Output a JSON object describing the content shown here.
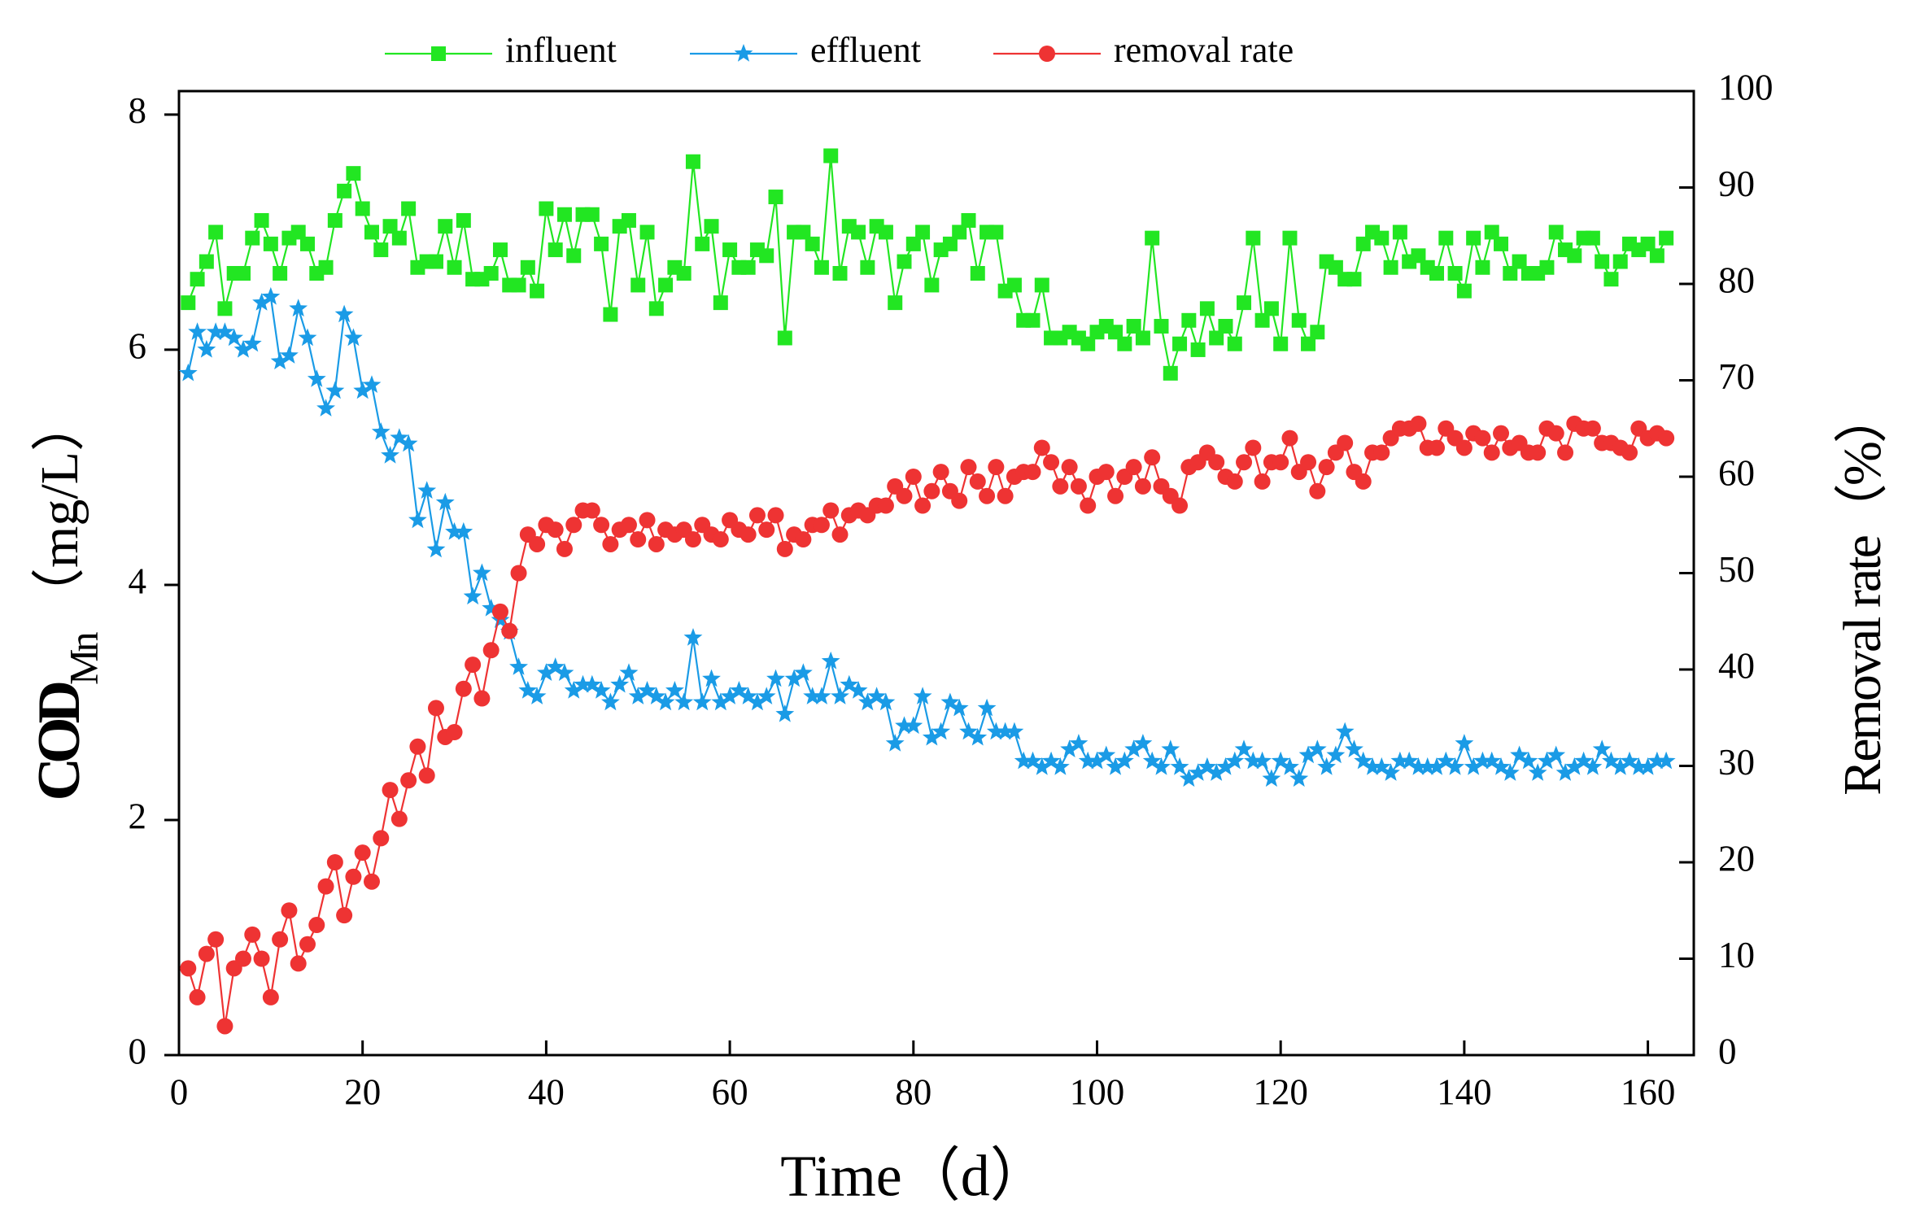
{
  "chart_data": {
    "type": "line",
    "xlabel": "Time（d）",
    "ylabel": "COD",
    "ylabel_sub": "Mn",
    "ylabel_unit": "（mg/L）",
    "y2label": "Removal rate（%）",
    "xlim": [
      0,
      165
    ],
    "xticks": [
      0,
      20,
      40,
      60,
      80,
      100,
      120,
      140,
      160
    ],
    "ylim": [
      0,
      8.2
    ],
    "yticks": [
      0,
      2,
      4,
      6,
      8
    ],
    "y2lim": [
      0,
      100
    ],
    "y2ticks": [
      0,
      10,
      20,
      30,
      40,
      50,
      60,
      70,
      80,
      90,
      100
    ],
    "legend": "top",
    "x": [
      1,
      2,
      3,
      4,
      5,
      6,
      7,
      8,
      9,
      10,
      11,
      12,
      13,
      14,
      15,
      16,
      17,
      18,
      19,
      20,
      21,
      22,
      23,
      24,
      25,
      26,
      27,
      28,
      29,
      30,
      31,
      32,
      33,
      34,
      35,
      36,
      37,
      38,
      39,
      40,
      41,
      42,
      43,
      44,
      45,
      46,
      47,
      48,
      49,
      50,
      51,
      52,
      53,
      54,
      55,
      56,
      57,
      58,
      59,
      60,
      61,
      62,
      63,
      64,
      65,
      66,
      67,
      68,
      69,
      70,
      71,
      72,
      73,
      74,
      75,
      76,
      77,
      78,
      79,
      80,
      81,
      82,
      83,
      84,
      85,
      86,
      87,
      88,
      89,
      90,
      91,
      92,
      93,
      94,
      95,
      96,
      97,
      98,
      99,
      100,
      101,
      102,
      103,
      104,
      105,
      106,
      107,
      108,
      109,
      110,
      111,
      112,
      113,
      114,
      115,
      116,
      117,
      118,
      119,
      120,
      121,
      122,
      123,
      124,
      125,
      126,
      127,
      128,
      129,
      130,
      131,
      132,
      133,
      134,
      135,
      136,
      137,
      138,
      139,
      140,
      141,
      142,
      143,
      144,
      145,
      146,
      147,
      148,
      149,
      150,
      151,
      152,
      153,
      154,
      155,
      156,
      157,
      158,
      159,
      160,
      161,
      162
    ],
    "series": [
      {
        "name": "influent",
        "color": "#22e622",
        "marker": "square",
        "values": [
          6.4,
          6.6,
          6.75,
          7.0,
          6.35,
          6.65,
          6.65,
          6.95,
          7.1,
          6.9,
          6.65,
          6.95,
          7.0,
          6.9,
          6.65,
          6.7,
          7.1,
          7.35,
          7.5,
          7.2,
          7.0,
          6.85,
          7.05,
          6.95,
          7.2,
          6.7,
          6.75,
          6.75,
          7.05,
          6.7,
          7.1,
          6.6,
          6.6,
          6.65,
          6.85,
          6.55,
          6.55,
          6.7,
          6.5,
          7.2,
          6.85,
          7.15,
          6.8,
          7.15,
          7.15,
          6.9,
          6.3,
          7.05,
          7.1,
          6.55,
          7.0,
          6.35,
          6.55,
          6.7,
          6.65,
          7.6,
          6.9,
          7.05,
          6.4,
          6.85,
          6.7,
          6.7,
          6.85,
          6.8,
          7.3,
          6.1,
          7.0,
          7.0,
          6.9,
          6.7,
          7.65,
          6.65,
          7.05,
          7.0,
          6.7,
          7.05,
          7.0,
          6.4,
          6.75,
          6.9,
          7.0,
          6.55,
          6.85,
          6.9,
          7.0,
          7.1,
          6.65,
          7.0,
          7.0,
          6.5,
          6.55,
          6.25,
          6.25,
          6.55,
          6.1,
          6.1,
          6.15,
          6.1,
          6.05,
          6.15,
          6.2,
          6.15,
          6.05,
          6.2,
          6.1,
          6.95,
          6.2,
          5.8,
          6.05,
          6.25,
          6.0,
          6.35,
          6.1,
          6.2,
          6.05,
          6.4,
          6.95,
          6.25,
          6.35,
          6.05,
          6.95,
          6.25,
          6.05,
          6.15,
          6.75,
          6.7,
          6.6,
          6.6,
          6.9,
          7.0,
          6.95,
          6.7,
          7.0,
          6.75,
          6.8,
          6.7,
          6.65,
          6.95,
          6.65,
          6.5,
          6.95,
          6.7,
          7.0,
          6.9,
          6.65,
          6.75,
          6.65,
          6.65,
          6.7,
          7.0,
          6.85,
          6.8,
          6.95,
          6.95,
          6.75,
          6.6,
          6.75,
          6.9,
          6.85,
          6.9,
          6.8,
          6.95
        ]
      },
      {
        "name": "effluent",
        "color": "#1a9be6",
        "marker": "star",
        "values": [
          5.8,
          6.15,
          6.0,
          6.15,
          6.15,
          6.1,
          6.0,
          6.05,
          6.4,
          6.45,
          5.9,
          5.95,
          6.35,
          6.1,
          5.75,
          5.5,
          5.65,
          6.3,
          6.1,
          5.65,
          5.7,
          5.3,
          5.1,
          5.25,
          5.2,
          4.55,
          4.8,
          4.3,
          4.7,
          4.45,
          4.45,
          3.9,
          4.1,
          3.8,
          3.7,
          3.6,
          3.3,
          3.1,
          3.05,
          3.25,
          3.3,
          3.25,
          3.1,
          3.15,
          3.15,
          3.1,
          3.0,
          3.15,
          3.25,
          3.05,
          3.1,
          3.05,
          3.0,
          3.1,
          3.0,
          3.55,
          3.0,
          3.2,
          3.0,
          3.05,
          3.1,
          3.05,
          3.0,
          3.05,
          3.2,
          2.9,
          3.2,
          3.25,
          3.05,
          3.05,
          3.35,
          3.05,
          3.15,
          3.1,
          3.0,
          3.05,
          3.0,
          2.65,
          2.8,
          2.8,
          3.05,
          2.7,
          2.75,
          3.0,
          2.95,
          2.75,
          2.7,
          2.95,
          2.75,
          2.75,
          2.75,
          2.5,
          2.5,
          2.45,
          2.5,
          2.45,
          2.6,
          2.65,
          2.5,
          2.5,
          2.55,
          2.45,
          2.5,
          2.6,
          2.65,
          2.5,
          2.45,
          2.6,
          2.45,
          2.35,
          2.4,
          2.45,
          2.4,
          2.45,
          2.5,
          2.6,
          2.5,
          2.5,
          2.35,
          2.5,
          2.45,
          2.35,
          2.55,
          2.6,
          2.45,
          2.55,
          2.75,
          2.6,
          2.5,
          2.45,
          2.45,
          2.4,
          2.5,
          2.5,
          2.45,
          2.45,
          2.45,
          2.5,
          2.45,
          2.65,
          2.45,
          2.5,
          2.5,
          2.45,
          2.4,
          2.55,
          2.5,
          2.4,
          2.5,
          2.55,
          2.4,
          2.45,
          2.5,
          2.45,
          2.6,
          2.5,
          2.45,
          2.5,
          2.45,
          2.45,
          2.5,
          2.5
        ]
      },
      {
        "name": "removal rate",
        "color": "#ee3333",
        "marker": "circle",
        "axis": "y2",
        "values": [
          9,
          6,
          10.5,
          12,
          3,
          9,
          10,
          12.5,
          10,
          6,
          12,
          15,
          9.5,
          11.5,
          13.5,
          17.5,
          20,
          14.5,
          18.5,
          21,
          18,
          22.5,
          27.5,
          24.5,
          28.5,
          32,
          29,
          36,
          33,
          33.5,
          38,
          40.5,
          37,
          42,
          46,
          44,
          50,
          54,
          53,
          55,
          54.5,
          52.5,
          55,
          56.5,
          56.5,
          55,
          53,
          54.5,
          55,
          53.5,
          55.5,
          53,
          54.5,
          54,
          54.5,
          53.5,
          55,
          54,
          53.5,
          55.5,
          54.5,
          54,
          56,
          54.5,
          56,
          52.5,
          54,
          53.5,
          55,
          55,
          56.5,
          54,
          56,
          56.5,
          56,
          57,
          57,
          59,
          58,
          60,
          57,
          58.5,
          60.5,
          58.5,
          57.5,
          61,
          59.5,
          58,
          61,
          58,
          60,
          60.5,
          60.5,
          63,
          61.5,
          59,
          61,
          59,
          57,
          60,
          60.5,
          58,
          60,
          61,
          59,
          62,
          59,
          58,
          57,
          61,
          61.5,
          62.5,
          61.5,
          60,
          59.5,
          61.5,
          63,
          59.5,
          61.5,
          61.5,
          64,
          60.5,
          61.5,
          58.5,
          61,
          62.5,
          63.5,
          60.5,
          59.5,
          62.5,
          62.5,
          64,
          65,
          65,
          65.5,
          63,
          63,
          65,
          64,
          63,
          64.5,
          64,
          62.5,
          64.5,
          63,
          63.5,
          62.5,
          62.5,
          65,
          64.5,
          62.5,
          65.5,
          65,
          65,
          63.5,
          63.5,
          63,
          62.5,
          65,
          64,
          64.5,
          64
        ]
      }
    ]
  }
}
